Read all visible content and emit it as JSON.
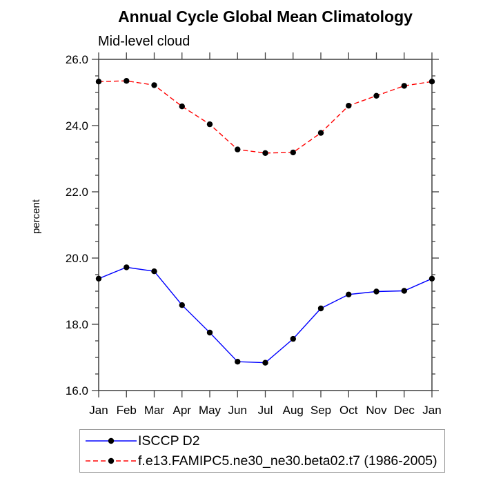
{
  "chart_data": {
    "type": "line",
    "title": "Annual Cycle Global Mean Climatology",
    "subtitle": "Mid-level cloud",
    "ylabel": "percent",
    "xlabel": "",
    "categories": [
      "Jan",
      "Feb",
      "Mar",
      "Apr",
      "May",
      "Jun",
      "Jul",
      "Aug",
      "Sep",
      "Oct",
      "Nov",
      "Dec",
      "Jan"
    ],
    "ylim": [
      16.0,
      26.0
    ],
    "ytick_interval": 2.0,
    "ytick_minor_interval": 0.5,
    "ytick_labels": [
      "16.0",
      "18.0",
      "20.0",
      "22.0",
      "24.0",
      "26.0"
    ],
    "grid": false,
    "legend_position": "bottom-left",
    "series": [
      {
        "name": "ISCCP D2",
        "color": "#0000ff",
        "line_style": "solid",
        "marker": "filled-circle",
        "marker_color": "#000000",
        "values": [
          19.38,
          19.72,
          19.6,
          18.58,
          17.75,
          16.87,
          16.84,
          17.56,
          18.48,
          18.9,
          18.99,
          19.01,
          19.38
        ]
      },
      {
        "name": "f.e13.FAMIPC5.ne30_ne30.beta02.t7 (1986-2005)",
        "color": "#ff0000",
        "line_style": "dashed",
        "marker": "filled-circle",
        "marker_color": "#000000",
        "values": [
          25.33,
          25.35,
          25.22,
          24.58,
          24.04,
          23.28,
          23.17,
          23.19,
          23.78,
          24.6,
          24.9,
          25.2,
          25.33
        ]
      }
    ]
  }
}
